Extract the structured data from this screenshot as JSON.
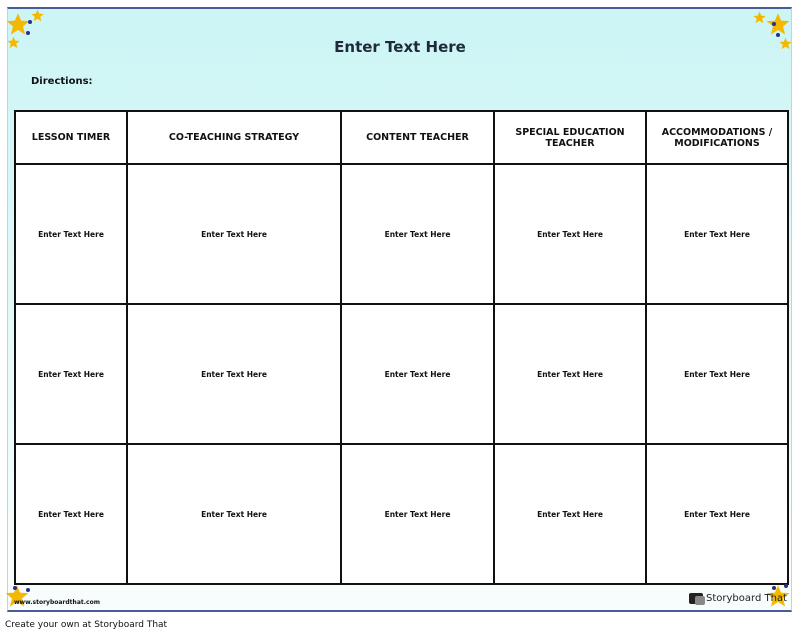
{
  "title": "Enter Text Here",
  "directions_label": "Directions:",
  "columns": [
    "LESSON TIMER",
    "CO-TEACHING STRATEGY",
    "CONTENT TEACHER",
    "SPECIAL EDUCATION TEACHER",
    "ACCOMMODATIONS / MODIFICATIONS"
  ],
  "rows": [
    [
      "Enter Text Here",
      "Enter Text Here",
      "Enter Text Here",
      "Enter Text Here",
      "Enter Text Here"
    ],
    [
      "Enter Text Here",
      "Enter Text Here",
      "Enter Text Here",
      "Enter Text Here",
      "Enter Text Here"
    ],
    [
      "Enter Text Here",
      "Enter Text Here",
      "Enter Text Here",
      "Enter Text Here",
      "Enter Text Here"
    ]
  ],
  "watermark_url": "www.storyboardthat.com",
  "logo_text": "Storyboard That",
  "footer": "Create your own at Storyboard That",
  "colors": {
    "background_top": "#ccf5f5",
    "border": "#4a5a9a",
    "star": "#f5b800"
  }
}
